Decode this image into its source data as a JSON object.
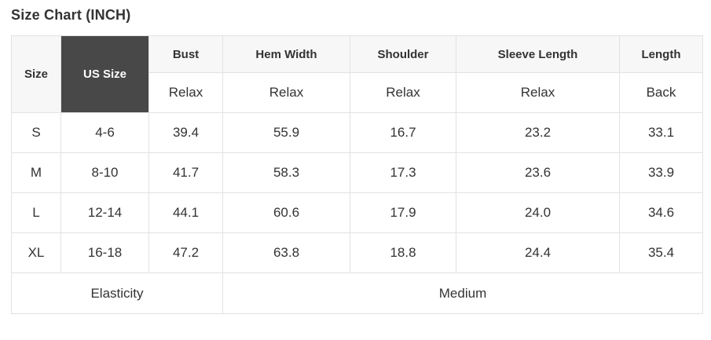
{
  "title": "Size Chart (INCH)",
  "colors": {
    "header_bg": "#f7f7f7",
    "dark_cell_bg": "#484848",
    "dark_cell_text": "#ffffff",
    "border": "#e2e2e2",
    "text": "#333333"
  },
  "table": {
    "header": {
      "size": "Size",
      "us_size": "US Size",
      "measurements": [
        {
          "label": "Bust",
          "fit": "Relax"
        },
        {
          "label": "Hem Width",
          "fit": "Relax"
        },
        {
          "label": "Shoulder",
          "fit": "Relax"
        },
        {
          "label": "Sleeve Length",
          "fit": "Relax"
        },
        {
          "label": "Length",
          "fit": "Back"
        }
      ]
    },
    "rows": [
      {
        "size": "S",
        "us_size": "4-6",
        "bust": "39.4",
        "hem_width": "55.9",
        "shoulder": "16.7",
        "sleeve_length": "23.2",
        "length": "33.1"
      },
      {
        "size": "M",
        "us_size": "8-10",
        "bust": "41.7",
        "hem_width": "58.3",
        "shoulder": "17.3",
        "sleeve_length": "23.6",
        "length": "33.9"
      },
      {
        "size": "L",
        "us_size": "12-14",
        "bust": "44.1",
        "hem_width": "60.6",
        "shoulder": "17.9",
        "sleeve_length": "24.0",
        "length": "34.6"
      },
      {
        "size": "XL",
        "us_size": "16-18",
        "bust": "47.2",
        "hem_width": "63.8",
        "shoulder": "18.8",
        "sleeve_length": "24.4",
        "length": "35.4"
      }
    ],
    "footer": {
      "label": "Elasticity",
      "value": "Medium"
    }
  }
}
